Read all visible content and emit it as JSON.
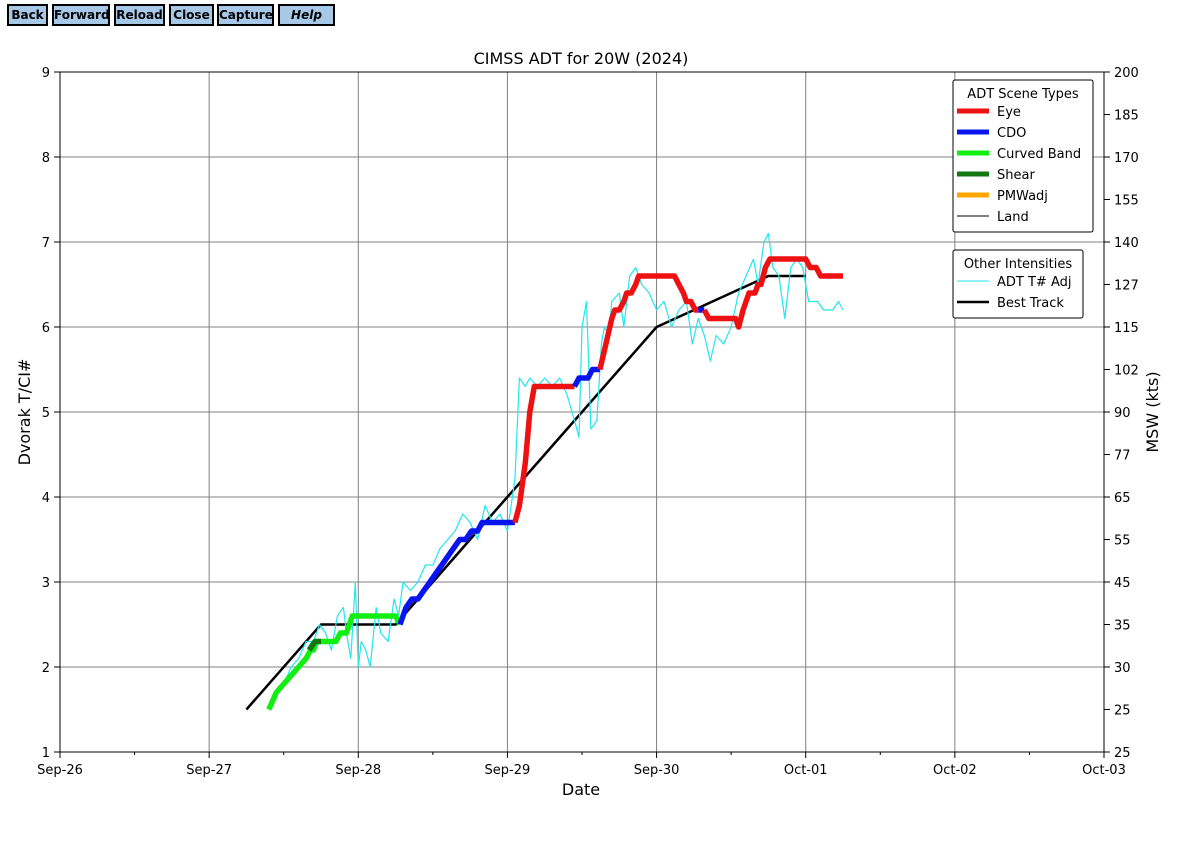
{
  "toolbar": {
    "buttons": [
      {
        "label": "Back",
        "name": "back-button"
      },
      {
        "label": "Forward",
        "name": "forward-button"
      },
      {
        "label": "Reload",
        "name": "reload-button"
      },
      {
        "label": "Close",
        "name": "close-button"
      },
      {
        "label": "Capture",
        "name": "capture-button"
      },
      {
        "label": "Help",
        "name": "help-button"
      }
    ]
  },
  "chart_data": {
    "type": "line",
    "title": "CIMSS ADT for 20W (2024)",
    "xlabel": "Date",
    "ylabel_left": "Dvorak T/CI#",
    "ylabel_right": "MSW (kts)",
    "x_ticks": [
      "Sep-26",
      "Sep-27",
      "Sep-28",
      "Sep-29",
      "Sep-30",
      "Oct-01",
      "Oct-02",
      "Oct-03"
    ],
    "xlim_days": [
      0,
      7
    ],
    "ylim_left": [
      1,
      9
    ],
    "y_ticks_left": [
      "1",
      "2",
      "3",
      "4",
      "5",
      "6",
      "7",
      "8",
      "9"
    ],
    "y_ticks_right": [
      {
        "t": 1,
        "label": "25"
      },
      {
        "t": 1.5,
        "label": "25"
      },
      {
        "t": 2,
        "label": "30"
      },
      {
        "t": 2.5,
        "label": "35"
      },
      {
        "t": 3,
        "label": "45"
      },
      {
        "t": 3.5,
        "label": "55"
      },
      {
        "t": 4,
        "label": "65"
      },
      {
        "t": 4.5,
        "label": "77"
      },
      {
        "t": 5,
        "label": "90"
      },
      {
        "t": 5.5,
        "label": "102"
      },
      {
        "t": 6,
        "label": "115"
      },
      {
        "t": 6.5,
        "label": "127"
      },
      {
        "t": 7,
        "label": "140"
      },
      {
        "t": 7.5,
        "label": "155"
      },
      {
        "t": 8,
        "label": "170"
      },
      {
        "t": 8.5,
        "label": "185"
      },
      {
        "t": 9,
        "label": "200"
      }
    ],
    "grid": true,
    "legend_scene": {
      "title": "ADT Scene Types",
      "entries": [
        {
          "label": "Eye",
          "color": "#ee1111",
          "width": 5
        },
        {
          "label": "CDO",
          "color": "#0a14ee",
          "width": 5
        },
        {
          "label": "Curved Band",
          "color": "#11ee11",
          "width": 5
        },
        {
          "label": "Shear",
          "color": "#117711",
          "width": 5
        },
        {
          "label": "PMWadj",
          "color": "#ffa500",
          "width": 5
        },
        {
          "label": "Land",
          "color": "#000000",
          "width": 1
        }
      ],
      "placement": "top-right"
    },
    "legend_other": {
      "title": "Other Intensities",
      "entries": [
        {
          "label": "ADT T# Adj",
          "color": "#22e6f0",
          "width": 1
        },
        {
          "label": "Best Track",
          "color": "#000000",
          "width": 2.5
        }
      ],
      "placement": "upper-right"
    },
    "series": [
      {
        "name": "Best Track",
        "color": "#000000",
        "points": [
          [
            1.25,
            1.5
          ],
          [
            1.75,
            2.5
          ],
          [
            2.0,
            2.5
          ],
          [
            2.25,
            2.5
          ],
          [
            2.5,
            3.0
          ],
          [
            2.75,
            3.5
          ],
          [
            3.0,
            4.0
          ],
          [
            3.25,
            4.5
          ],
          [
            3.5,
            5.0
          ],
          [
            3.75,
            5.5
          ],
          [
            4.0,
            6.0
          ],
          [
            4.25,
            6.2
          ],
          [
            4.5,
            6.4
          ],
          [
            4.75,
            6.6
          ],
          [
            5.0,
            6.6
          ]
        ]
      },
      {
        "name": "ADT T# Adj",
        "color": "#22e6f0",
        "points": [
          [
            1.4,
            1.5
          ],
          [
            1.44,
            1.7
          ],
          [
            1.5,
            1.8
          ],
          [
            1.55,
            2.0
          ],
          [
            1.6,
            2.1
          ],
          [
            1.65,
            2.3
          ],
          [
            1.7,
            2.3
          ],
          [
            1.74,
            2.5
          ],
          [
            1.78,
            2.4
          ],
          [
            1.82,
            2.2
          ],
          [
            1.86,
            2.6
          ],
          [
            1.9,
            2.7
          ],
          [
            1.92,
            2.4
          ],
          [
            1.95,
            2.1
          ],
          [
            1.98,
            3.0
          ],
          [
            2.0,
            2.0
          ],
          [
            2.02,
            2.3
          ],
          [
            2.05,
            2.2
          ],
          [
            2.08,
            2.0
          ],
          [
            2.12,
            2.7
          ],
          [
            2.15,
            2.4
          ],
          [
            2.2,
            2.3
          ],
          [
            2.24,
            2.8
          ],
          [
            2.27,
            2.6
          ],
          [
            2.3,
            3.0
          ],
          [
            2.35,
            2.9
          ],
          [
            2.4,
            3.0
          ],
          [
            2.45,
            3.2
          ],
          [
            2.5,
            3.2
          ],
          [
            2.55,
            3.4
          ],
          [
            2.6,
            3.5
          ],
          [
            2.65,
            3.6
          ],
          [
            2.7,
            3.8
          ],
          [
            2.75,
            3.7
          ],
          [
            2.8,
            3.5
          ],
          [
            2.85,
            3.9
          ],
          [
            2.9,
            3.7
          ],
          [
            2.95,
            3.8
          ],
          [
            3.0,
            3.6
          ],
          [
            3.05,
            4.2
          ],
          [
            3.08,
            5.4
          ],
          [
            3.12,
            5.3
          ],
          [
            3.15,
            5.4
          ],
          [
            3.2,
            5.3
          ],
          [
            3.25,
            5.4
          ],
          [
            3.3,
            5.3
          ],
          [
            3.35,
            5.4
          ],
          [
            3.4,
            5.2
          ],
          [
            3.45,
            4.9
          ],
          [
            3.48,
            4.7
          ],
          [
            3.5,
            6.0
          ],
          [
            3.53,
            6.3
          ],
          [
            3.56,
            4.8
          ],
          [
            3.6,
            4.9
          ],
          [
            3.63,
            5.8
          ],
          [
            3.65,
            6.0
          ],
          [
            3.68,
            5.9
          ],
          [
            3.7,
            6.3
          ],
          [
            3.75,
            6.4
          ],
          [
            3.78,
            6.0
          ],
          [
            3.82,
            6.6
          ],
          [
            3.86,
            6.7
          ],
          [
            3.9,
            6.5
          ],
          [
            3.95,
            6.4
          ],
          [
            4.0,
            6.2
          ],
          [
            4.05,
            6.3
          ],
          [
            4.1,
            6.0
          ],
          [
            4.15,
            6.2
          ],
          [
            4.2,
            6.3
          ],
          [
            4.24,
            5.8
          ],
          [
            4.28,
            6.1
          ],
          [
            4.32,
            5.9
          ],
          [
            4.36,
            5.6
          ],
          [
            4.4,
            5.9
          ],
          [
            4.45,
            5.8
          ],
          [
            4.5,
            6.0
          ],
          [
            4.55,
            6.4
          ],
          [
            4.6,
            6.6
          ],
          [
            4.65,
            6.8
          ],
          [
            4.68,
            6.5
          ],
          [
            4.72,
            7.0
          ],
          [
            4.75,
            7.1
          ],
          [
            4.78,
            6.7
          ],
          [
            4.82,
            6.6
          ],
          [
            4.86,
            6.1
          ],
          [
            4.9,
            6.7
          ],
          [
            4.94,
            6.8
          ],
          [
            4.98,
            6.7
          ],
          [
            5.02,
            6.3
          ],
          [
            5.08,
            6.3
          ],
          [
            5.12,
            6.2
          ],
          [
            5.18,
            6.2
          ],
          [
            5.22,
            6.3
          ],
          [
            5.25,
            6.2
          ]
        ]
      },
      {
        "name": "Curved Band",
        "color": "#11ee11",
        "points": [
          [
            1.4,
            1.5
          ],
          [
            1.45,
            1.7
          ],
          [
            1.5,
            1.8
          ],
          [
            1.55,
            1.9
          ],
          [
            1.6,
            2.0
          ],
          [
            1.65,
            2.1
          ],
          [
            1.68,
            2.2
          ],
          [
            1.7,
            2.2
          ],
          [
            1.72,
            2.3
          ],
          [
            1.8,
            2.3
          ],
          [
            1.85,
            2.3
          ],
          [
            1.88,
            2.4
          ],
          [
            1.92,
            2.4
          ],
          [
            1.96,
            2.6
          ],
          [
            2.1,
            2.6
          ],
          [
            2.25,
            2.6
          ],
          [
            2.28,
            2.5
          ]
        ]
      },
      {
        "name": "Shear",
        "color": "#117711",
        "points": [
          [
            1.67,
            2.2
          ],
          [
            1.71,
            2.3
          ],
          [
            1.75,
            2.3
          ]
        ]
      },
      {
        "name": "CDO",
        "color": "#0a14ee",
        "points": [
          [
            2.28,
            2.5
          ],
          [
            2.32,
            2.7
          ],
          [
            2.36,
            2.8
          ],
          [
            2.4,
            2.8
          ],
          [
            2.44,
            2.9
          ],
          [
            2.48,
            3.0
          ],
          [
            2.52,
            3.1
          ],
          [
            2.56,
            3.2
          ],
          [
            2.6,
            3.3
          ],
          [
            2.64,
            3.4
          ],
          [
            2.68,
            3.5
          ],
          [
            2.72,
            3.5
          ],
          [
            2.76,
            3.6
          ],
          [
            2.8,
            3.6
          ],
          [
            2.83,
            3.7
          ],
          [
            3.05,
            3.7
          ]
        ]
      },
      {
        "name": "Eye",
        "color": "#ee1111",
        "points": [
          [
            3.05,
            3.7
          ],
          [
            3.08,
            3.9
          ],
          [
            3.12,
            4.4
          ],
          [
            3.15,
            5.0
          ],
          [
            3.18,
            5.3
          ],
          [
            3.45,
            5.3
          ]
        ]
      },
      {
        "name": "CDO",
        "color": "#0a14ee",
        "points": [
          [
            3.45,
            5.3
          ],
          [
            3.48,
            5.4
          ],
          [
            3.54,
            5.4
          ],
          [
            3.57,
            5.5
          ],
          [
            3.62,
            5.5
          ]
        ]
      },
      {
        "name": "Eye",
        "color": "#ee1111",
        "points": [
          [
            3.62,
            5.5
          ],
          [
            3.66,
            5.8
          ],
          [
            3.7,
            6.1
          ],
          [
            3.72,
            6.2
          ],
          [
            3.75,
            6.2
          ],
          [
            3.78,
            6.3
          ],
          [
            3.8,
            6.4
          ],
          [
            3.83,
            6.4
          ],
          [
            3.86,
            6.5
          ],
          [
            3.88,
            6.6
          ],
          [
            4.12,
            6.6
          ],
          [
            4.15,
            6.5
          ],
          [
            4.18,
            6.4
          ],
          [
            4.2,
            6.3
          ],
          [
            4.23,
            6.3
          ],
          [
            4.26,
            6.2
          ],
          [
            4.28,
            6.2
          ]
        ]
      },
      {
        "name": "CDO",
        "color": "#0a14ee",
        "points": [
          [
            4.28,
            6.2
          ],
          [
            4.32,
            6.2
          ]
        ]
      },
      {
        "name": "Eye",
        "color": "#ee1111",
        "points": [
          [
            4.32,
            6.2
          ],
          [
            4.35,
            6.1
          ],
          [
            4.53,
            6.1
          ],
          [
            4.55,
            6.0
          ],
          [
            4.58,
            6.2
          ],
          [
            4.62,
            6.4
          ],
          [
            4.66,
            6.4
          ],
          [
            4.68,
            6.5
          ],
          [
            4.7,
            6.5
          ],
          [
            4.73,
            6.7
          ],
          [
            4.76,
            6.8
          ],
          [
            4.98,
            6.8
          ],
          [
            5.0,
            6.8
          ],
          [
            5.03,
            6.7
          ],
          [
            5.07,
            6.7
          ],
          [
            5.1,
            6.6
          ],
          [
            5.25,
            6.6
          ]
        ]
      }
    ]
  }
}
